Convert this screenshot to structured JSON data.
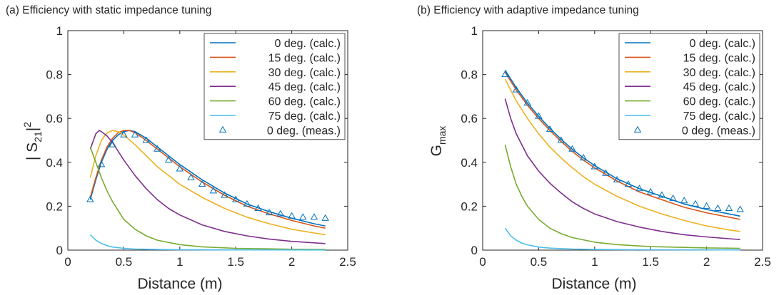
{
  "panels": [
    {
      "title": "(a) Efficiency with static impedance tuning",
      "xlabel": "Distance (m)",
      "ylabel_main": "| S",
      "ylabel_sub": "21",
      "ylabel_after": "|",
      "ylabel_sup": "2",
      "legend": [
        "0 deg. (calc.)",
        "15 deg. (calc.)",
        "30 deg. (calc.)",
        "45 deg. (calc.)",
        "60 deg. (calc.)",
        "75 deg. (calc.)",
        "0 deg. (meas.)"
      ]
    },
    {
      "title": "(b) Efficiency with adaptive impedance tuning",
      "xlabel": "Distance (m)",
      "ylabel_main": "G",
      "ylabel_sub": "max",
      "ylabel_after": "",
      "ylabel_sup": "",
      "legend": [
        "0 deg. (calc.)",
        "15 deg. (calc.)",
        "30 deg. (calc.)",
        "45 deg. (calc.)",
        "60 deg. (calc.)",
        "75 deg. (calc.)",
        "0 deg. (meas.)"
      ]
    }
  ],
  "series_colors": [
    "#0072bd",
    "#d95319",
    "#edb120",
    "#7e2f8e",
    "#77ac30",
    "#4dbeee",
    "#0072bd"
  ],
  "chart_data": [
    {
      "type": "line",
      "title": "(a) Efficiency with static impedance tuning",
      "xlabel": "Distance (m)",
      "ylabel": "| S21|^2",
      "xlim": [
        0,
        2.5
      ],
      "ylim": [
        0,
        1
      ],
      "xticks": [
        "0",
        "0.5",
        "1",
        "1.5",
        "2",
        "2.5"
      ],
      "yticks": [
        "0",
        "0.2",
        "0.4",
        "0.6",
        "0.8",
        "1"
      ],
      "grid": false,
      "legend_position": "top-right",
      "series": [
        {
          "name": "0 deg. (calc.)",
          "style": "line",
          "x": [
            0.2,
            0.25,
            0.3,
            0.35,
            0.4,
            0.45,
            0.5,
            0.55,
            0.6,
            0.7,
            0.8,
            0.9,
            1.0,
            1.2,
            1.4,
            1.6,
            1.8,
            2.0,
            2.2,
            2.3
          ],
          "y": [
            0.23,
            0.32,
            0.4,
            0.46,
            0.5,
            0.525,
            0.54,
            0.545,
            0.54,
            0.51,
            0.47,
            0.43,
            0.39,
            0.32,
            0.26,
            0.21,
            0.175,
            0.145,
            0.12,
            0.11
          ]
        },
        {
          "name": "15 deg. (calc.)",
          "style": "line",
          "x": [
            0.2,
            0.25,
            0.3,
            0.35,
            0.4,
            0.45,
            0.5,
            0.55,
            0.6,
            0.7,
            0.8,
            0.9,
            1.0,
            1.2,
            1.4,
            1.6,
            1.8,
            2.0,
            2.2,
            2.3
          ],
          "y": [
            0.24,
            0.33,
            0.41,
            0.47,
            0.51,
            0.535,
            0.545,
            0.545,
            0.535,
            0.5,
            0.46,
            0.42,
            0.38,
            0.31,
            0.25,
            0.2,
            0.165,
            0.135,
            0.11,
            0.1
          ]
        },
        {
          "name": "30 deg. (calc.)",
          "style": "line",
          "x": [
            0.2,
            0.25,
            0.3,
            0.35,
            0.4,
            0.45,
            0.5,
            0.6,
            0.7,
            0.8,
            0.9,
            1.0,
            1.2,
            1.4,
            1.6,
            1.8,
            2.0,
            2.2,
            2.3
          ],
          "y": [
            0.33,
            0.43,
            0.5,
            0.535,
            0.545,
            0.54,
            0.525,
            0.48,
            0.43,
            0.38,
            0.34,
            0.3,
            0.24,
            0.19,
            0.15,
            0.12,
            0.095,
            0.078,
            0.07
          ]
        },
        {
          "name": "45 deg. (calc.)",
          "style": "line",
          "x": [
            0.2,
            0.25,
            0.28,
            0.3,
            0.35,
            0.4,
            0.5,
            0.6,
            0.7,
            0.8,
            0.9,
            1.0,
            1.2,
            1.4,
            1.6,
            1.8,
            2.0,
            2.2,
            2.3
          ],
          "y": [
            0.46,
            0.53,
            0.545,
            0.54,
            0.52,
            0.49,
            0.41,
            0.34,
            0.28,
            0.23,
            0.19,
            0.16,
            0.115,
            0.085,
            0.065,
            0.05,
            0.04,
            0.033,
            0.03
          ]
        },
        {
          "name": "60 deg. (calc.)",
          "style": "line",
          "x": [
            0.2,
            0.25,
            0.3,
            0.35,
            0.4,
            0.5,
            0.6,
            0.7,
            0.8,
            1.0,
            1.2,
            1.5,
            2.0,
            2.3
          ],
          "y": [
            0.47,
            0.4,
            0.33,
            0.27,
            0.22,
            0.14,
            0.095,
            0.065,
            0.045,
            0.025,
            0.015,
            0.008,
            0.004,
            0.003
          ]
        },
        {
          "name": "75 deg. (calc.)",
          "style": "line",
          "x": [
            0.2,
            0.25,
            0.3,
            0.35,
            0.4,
            0.5,
            0.6,
            0.8,
            1.0,
            1.5,
            2.3
          ],
          "y": [
            0.07,
            0.045,
            0.03,
            0.02,
            0.014,
            0.008,
            0.005,
            0.003,
            0.002,
            0.001,
            0.0005
          ]
        },
        {
          "name": "0 deg. (meas.)",
          "style": "marker",
          "x": [
            0.2,
            0.3,
            0.4,
            0.5,
            0.6,
            0.7,
            0.8,
            0.9,
            1.0,
            1.1,
            1.2,
            1.3,
            1.4,
            1.5,
            1.6,
            1.7,
            1.8,
            1.9,
            2.0,
            2.1,
            2.2,
            2.3
          ],
          "y": [
            0.23,
            0.39,
            0.48,
            0.525,
            0.525,
            0.5,
            0.46,
            0.41,
            0.37,
            0.33,
            0.3,
            0.27,
            0.25,
            0.23,
            0.21,
            0.19,
            0.17,
            0.165,
            0.155,
            0.15,
            0.15,
            0.145
          ]
        }
      ]
    },
    {
      "type": "line",
      "title": "(b) Efficiency with adaptive impedance tuning",
      "xlabel": "Distance (m)",
      "ylabel": "G_max",
      "xlim": [
        0,
        2.5
      ],
      "ylim": [
        0,
        1
      ],
      "xticks": [
        "0",
        "0.5",
        "1",
        "1.5",
        "2",
        "2.5"
      ],
      "yticks": [
        "0",
        "0.2",
        "0.4",
        "0.6",
        "0.8",
        "1"
      ],
      "grid": false,
      "legend_position": "top-right",
      "series": [
        {
          "name": "0 deg. (calc.)",
          "style": "line",
          "x": [
            0.2,
            0.3,
            0.4,
            0.5,
            0.6,
            0.7,
            0.8,
            0.9,
            1.0,
            1.2,
            1.4,
            1.6,
            1.8,
            2.0,
            2.2,
            2.3
          ],
          "y": [
            0.82,
            0.74,
            0.67,
            0.61,
            0.555,
            0.505,
            0.46,
            0.42,
            0.385,
            0.325,
            0.28,
            0.245,
            0.21,
            0.185,
            0.165,
            0.155
          ]
        },
        {
          "name": "15 deg. (calc.)",
          "style": "line",
          "x": [
            0.2,
            0.3,
            0.4,
            0.5,
            0.6,
            0.7,
            0.8,
            0.9,
            1.0,
            1.2,
            1.4,
            1.6,
            1.8,
            2.0,
            2.2,
            2.3
          ],
          "y": [
            0.81,
            0.73,
            0.66,
            0.6,
            0.545,
            0.495,
            0.45,
            0.41,
            0.375,
            0.315,
            0.265,
            0.23,
            0.195,
            0.17,
            0.15,
            0.14
          ]
        },
        {
          "name": "30 deg. (calc.)",
          "style": "line",
          "x": [
            0.2,
            0.3,
            0.4,
            0.5,
            0.6,
            0.7,
            0.8,
            0.9,
            1.0,
            1.2,
            1.4,
            1.6,
            1.8,
            2.0,
            2.2,
            2.3
          ],
          "y": [
            0.78,
            0.68,
            0.6,
            0.53,
            0.47,
            0.42,
            0.375,
            0.335,
            0.3,
            0.245,
            0.2,
            0.165,
            0.135,
            0.11,
            0.092,
            0.085
          ]
        },
        {
          "name": "45 deg. (calc.)",
          "style": "line",
          "x": [
            0.2,
            0.25,
            0.3,
            0.4,
            0.5,
            0.6,
            0.7,
            0.8,
            0.9,
            1.0,
            1.2,
            1.4,
            1.6,
            1.8,
            2.0,
            2.2,
            2.3
          ],
          "y": [
            0.69,
            0.6,
            0.53,
            0.43,
            0.36,
            0.305,
            0.26,
            0.22,
            0.19,
            0.165,
            0.13,
            0.105,
            0.085,
            0.07,
            0.06,
            0.052,
            0.048
          ]
        },
        {
          "name": "60 deg. (calc.)",
          "style": "line",
          "x": [
            0.2,
            0.25,
            0.3,
            0.35,
            0.4,
            0.5,
            0.6,
            0.7,
            0.8,
            1.0,
            1.2,
            1.5,
            2.0,
            2.3
          ],
          "y": [
            0.48,
            0.38,
            0.3,
            0.245,
            0.2,
            0.14,
            0.1,
            0.075,
            0.057,
            0.036,
            0.025,
            0.016,
            0.01,
            0.008
          ]
        },
        {
          "name": "75 deg. (calc.)",
          "style": "line",
          "x": [
            0.2,
            0.25,
            0.3,
            0.35,
            0.4,
            0.5,
            0.6,
            0.8,
            1.0,
            1.5,
            2.3
          ],
          "y": [
            0.1,
            0.065,
            0.045,
            0.032,
            0.024,
            0.014,
            0.009,
            0.005,
            0.003,
            0.0015,
            0.001
          ]
        },
        {
          "name": "0 deg. (meas.)",
          "style": "marker",
          "x": [
            0.2,
            0.3,
            0.4,
            0.5,
            0.6,
            0.7,
            0.8,
            0.9,
            1.0,
            1.1,
            1.2,
            1.3,
            1.4,
            1.5,
            1.6,
            1.7,
            1.8,
            1.9,
            2.0,
            2.1,
            2.2,
            2.3
          ],
          "y": [
            0.8,
            0.73,
            0.67,
            0.61,
            0.55,
            0.5,
            0.46,
            0.42,
            0.38,
            0.35,
            0.32,
            0.3,
            0.28,
            0.265,
            0.25,
            0.235,
            0.225,
            0.21,
            0.2,
            0.19,
            0.19,
            0.185
          ]
        }
      ]
    }
  ]
}
